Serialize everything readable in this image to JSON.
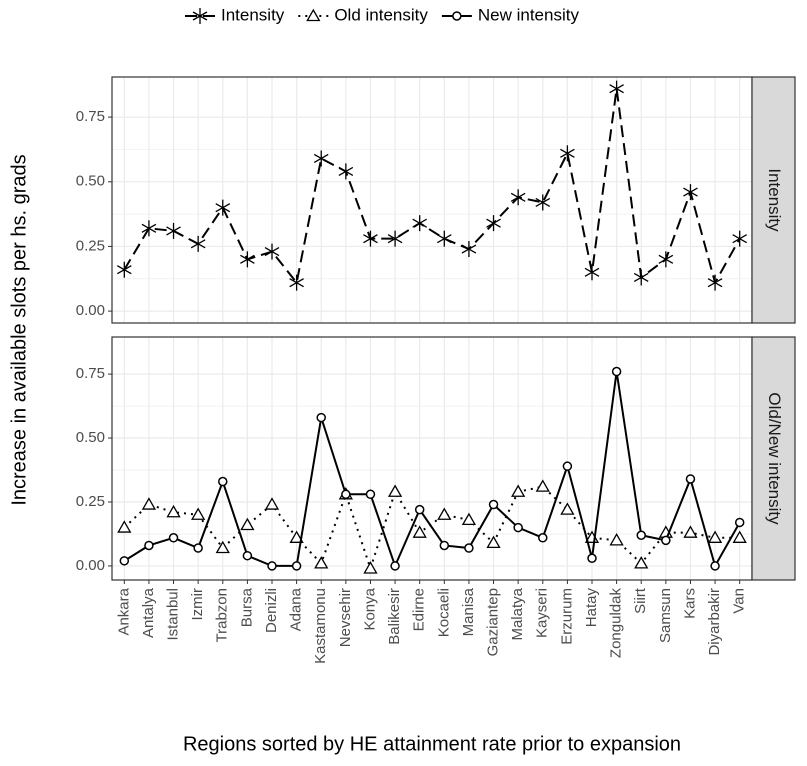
{
  "chart_data": [
    {
      "type": "line",
      "strip": "Intensity",
      "ylabel": "Increase in available slots per hs. grads",
      "ylim": [
        -0.046,
        0.905
      ],
      "yticks": [
        {
          "value": 0,
          "label": "0.00"
        },
        0.25,
        {
          "value": 0.5,
          "label": "0.50"
        },
        0.75
      ],
      "grid": true,
      "series": [
        {
          "name": "Intensity",
          "color": "#000000",
          "linestyle": "dashed",
          "marker": "asterisk",
          "values": [
            0.16,
            0.32,
            0.31,
            0.26,
            0.4,
            0.2,
            0.23,
            0.11,
            0.59,
            0.54,
            0.28,
            0.28,
            0.34,
            0.28,
            0.24,
            0.34,
            0.44,
            0.42,
            0.61,
            0.15,
            0.86,
            0.13,
            0.2,
            0.46,
            0.11,
            0.28
          ]
        }
      ]
    },
    {
      "type": "line",
      "strip": "Old/New intensity",
      "xlabel": "Regions sorted by HE attainment rate prior to expansion",
      "categories": [
        "Ankara",
        "Antalya",
        "Istanbul",
        "Izmir",
        "Trabzon",
        "Bursa",
        "Denizli",
        "Adana",
        "Kastamonu",
        "Nevsehir",
        "Konya",
        "Balikesir",
        "Edirne",
        "Kocaeli",
        "Manisa",
        "Gaziantep",
        "Malatya",
        "Kayseri",
        "Erzurum",
        "Hatay",
        "Zonguldak",
        "Siirt",
        "Samsun",
        "Kars",
        "Diyarbakir",
        "Van"
      ],
      "ylim": [
        -0.055,
        0.895
      ],
      "yticks": [
        {
          "value": 0,
          "label": "0.00"
        },
        0.25,
        {
          "value": 0.5,
          "label": "0.50"
        },
        0.75
      ],
      "grid": true,
      "series": [
        {
          "name": "Old intensity",
          "color": "#000000",
          "linestyle": "dotted",
          "marker": "triangle",
          "values": [
            0.15,
            0.24,
            0.21,
            0.2,
            0.07,
            0.16,
            0.24,
            0.11,
            0.01,
            0.28,
            -0.01,
            0.29,
            0.13,
            0.2,
            0.18,
            0.09,
            0.29,
            0.31,
            0.22,
            0.11,
            0.1,
            0.01,
            0.13,
            0.13,
            0.11,
            0.11
          ]
        },
        {
          "name": "New intensity",
          "color": "#000000",
          "linestyle": "solid",
          "marker": "circle",
          "values": [
            0.02,
            0.08,
            0.11,
            0.07,
            0.33,
            0.04,
            0.0,
            0.0,
            0.58,
            0.28,
            0.28,
            0.0,
            0.22,
            0.08,
            0.07,
            0.24,
            0.15,
            0.11,
            0.39,
            0.03,
            0.76,
            0.12,
            0.1,
            0.34,
            0.0,
            0.17
          ]
        }
      ]
    }
  ]
}
